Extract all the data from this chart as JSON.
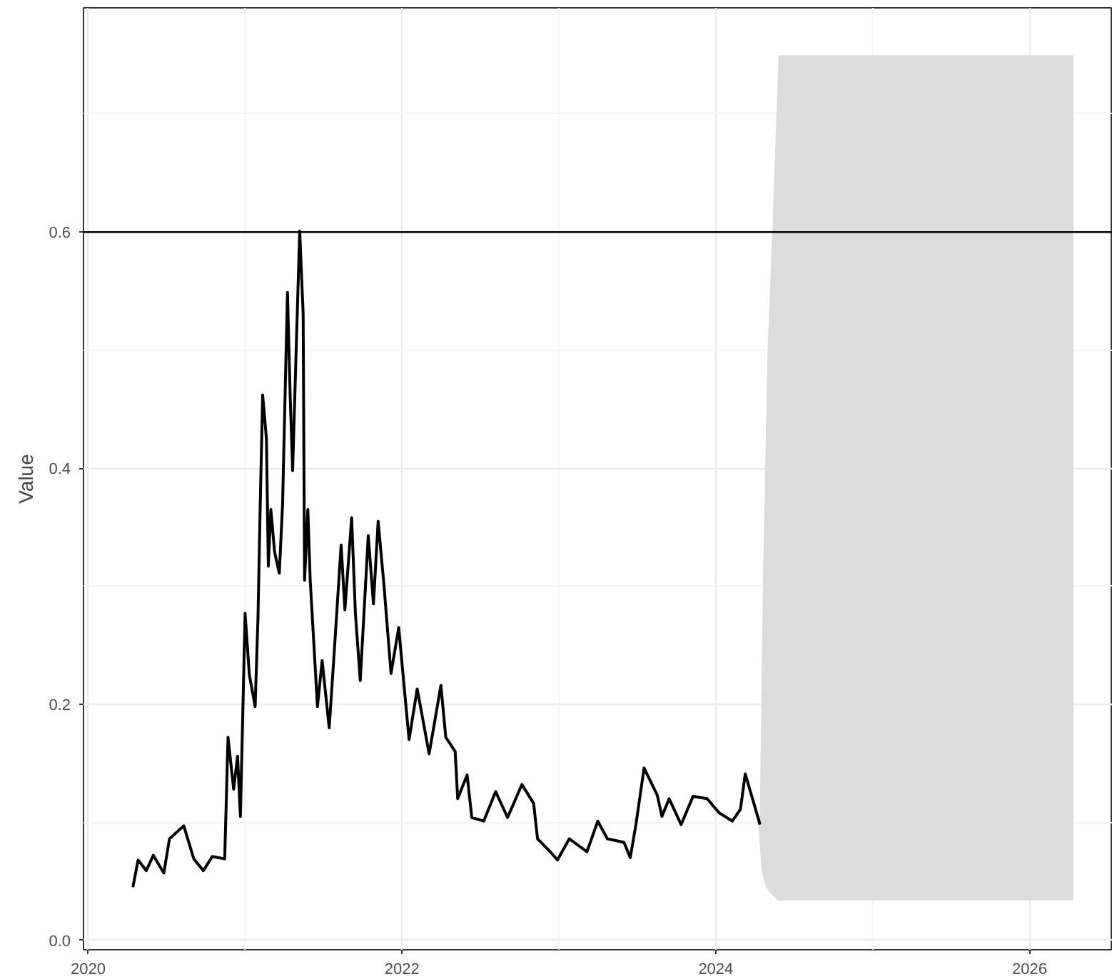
{
  "chart_data": {
    "type": "line",
    "ylabel": "Value",
    "xlim": [
      2019.97,
      2026.53
    ],
    "xticks": [
      2020,
      2022,
      2024,
      2026
    ],
    "ylim": [
      -0.008,
      0.79
    ],
    "yticks": [
      {
        "value": 0,
        "label": "0.0"
      },
      0.2,
      0.4,
      0.6
    ],
    "grid": true,
    "ref_lines": [
      {
        "axis": "y",
        "value": 0.6,
        "color": "#000000",
        "line_style": "solid"
      }
    ],
    "series": [
      {
        "type": "line",
        "color": "#dcdcdc",
        "x": [
          2024.28,
          2024.3,
          2024.33,
          2024.36,
          2024.4,
          2026.28
        ],
        "lower": [
          0.1,
          0.06,
          0.045,
          0.04,
          0.035,
          0.035
        ],
        "upper": [
          0.1,
          0.3,
          0.5,
          0.6,
          0.75,
          0.75
        ],
        "values": [
          0.1,
          0.06,
          0.045,
          0.04,
          0.035,
          0.035
        ]
      },
      {
        "type": "line",
        "color": "#000000",
        "x": [
          2020.285,
          2020.318,
          2020.37,
          2020.415,
          2020.482,
          2020.518,
          2020.609,
          2020.673,
          2020.734,
          2020.791,
          2020.87,
          2020.891,
          2020.927,
          2020.952,
          2020.97,
          2021.0,
          2021.027,
          2021.064,
          2021.082,
          2021.097,
          2021.112,
          2021.136,
          2021.148,
          2021.164,
          2021.188,
          2021.218,
          2021.239,
          2021.27,
          2021.288,
          2021.303,
          2021.325,
          2021.348,
          2021.37,
          2021.379,
          2021.4,
          2021.415,
          2021.461,
          2021.491,
          2021.536,
          2021.566,
          2021.612,
          2021.636,
          2021.679,
          2021.703,
          2021.734,
          2021.785,
          2021.818,
          2021.848,
          2021.885,
          2021.93,
          2021.979,
          2022.045,
          2022.097,
          2022.173,
          2022.248,
          2022.279,
          2022.339,
          2022.355,
          2022.415,
          2022.445,
          2022.521,
          2022.597,
          2022.673,
          2022.764,
          2022.839,
          2022.864,
          2022.945,
          2022.991,
          2023.066,
          2023.179,
          2023.248,
          2023.309,
          2023.415,
          2023.455,
          2023.491,
          2023.543,
          2023.627,
          2023.657,
          2023.703,
          2023.779,
          2023.855,
          2023.945,
          2024.021,
          2024.106,
          2024.157,
          2024.188,
          2024.234,
          2024.282
        ],
        "values": [
          0.045,
          0.068,
          0.059,
          0.072,
          0.057,
          0.086,
          0.097,
          0.069,
          0.059,
          0.071,
          0.069,
          0.172,
          0.128,
          0.156,
          0.105,
          0.277,
          0.225,
          0.198,
          0.273,
          0.373,
          0.462,
          0.425,
          0.317,
          0.365,
          0.329,
          0.311,
          0.37,
          0.549,
          0.458,
          0.398,
          0.498,
          0.601,
          0.531,
          0.305,
          0.365,
          0.305,
          0.198,
          0.237,
          0.18,
          0.24,
          0.335,
          0.28,
          0.358,
          0.277,
          0.22,
          0.343,
          0.285,
          0.355,
          0.301,
          0.226,
          0.265,
          0.17,
          0.213,
          0.158,
          0.216,
          0.172,
          0.16,
          0.12,
          0.14,
          0.104,
          0.101,
          0.126,
          0.104,
          0.132,
          0.116,
          0.086,
          0.075,
          0.068,
          0.086,
          0.075,
          0.101,
          0.086,
          0.083,
          0.07,
          0.098,
          0.146,
          0.123,
          0.105,
          0.12,
          0.098,
          0.122,
          0.12,
          0.108,
          0.101,
          0.111,
          0.141,
          0.12,
          0.098
        ]
      }
    ]
  }
}
